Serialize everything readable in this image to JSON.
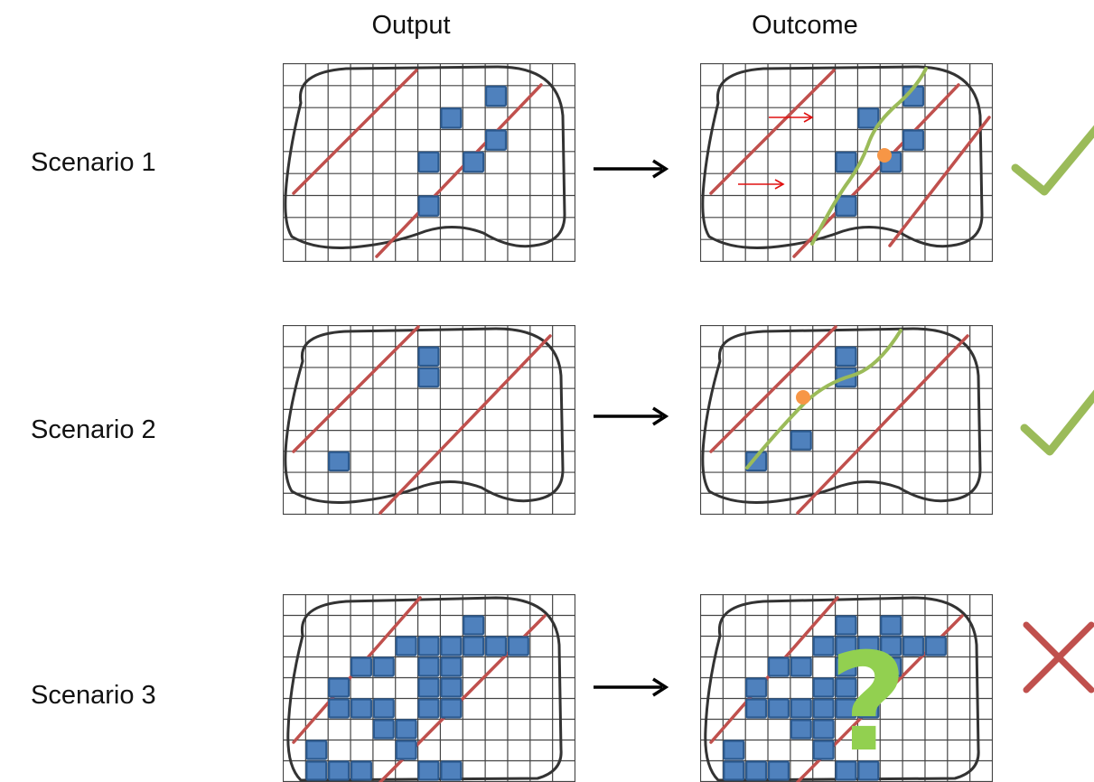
{
  "headers": {
    "output": "Output",
    "outcome": "Outcome"
  },
  "rows": [
    {
      "label": "Scenario 1",
      "result": "check"
    },
    {
      "label": "Scenario 2",
      "result": "check"
    },
    {
      "label": "Scenario 3",
      "result": "cross"
    }
  ],
  "grid": {
    "cols": 13,
    "rows": 9
  },
  "colors": {
    "grid_line": "#444444",
    "boundary": "#333333",
    "band_line": "#c0504d",
    "cell_fill": "#4f81bd",
    "cell_stroke": "#2c5a8f",
    "green_curve": "#9bbb59",
    "point": "#f79646",
    "small_arrow": "#e01010",
    "check": "#9bbb59",
    "cross": "#c0504d",
    "question": "#92d050",
    "flow_arrow": "#000000"
  },
  "icons": {
    "transition": "right-arrow-icon",
    "success": "checkmark-icon",
    "failure": "cross-icon",
    "unknown": "question-mark-icon"
  },
  "question_glyph": "?"
}
